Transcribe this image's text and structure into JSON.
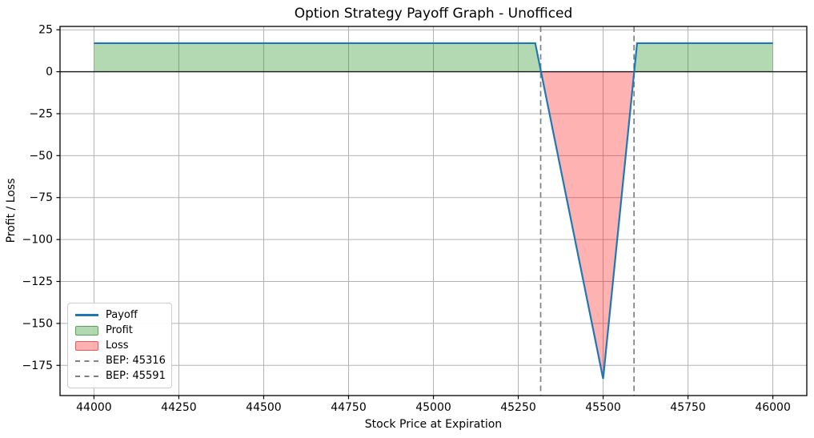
{
  "chart_data": {
    "type": "line",
    "title": "Option Strategy Payoff Graph - Unofficed",
    "xlabel": "Stock Price at Expiration",
    "ylabel": "Profit / Loss",
    "xlim": [
      43900,
      46100
    ],
    "ylim": [
      -193,
      27
    ],
    "grid": true,
    "x_ticks": [
      44000,
      44250,
      44500,
      44750,
      45000,
      45250,
      45500,
      45750,
      46000
    ],
    "x_tick_labels": [
      "44000",
      "44250",
      "44500",
      "44750",
      "45000",
      "45250",
      "45500",
      "45750",
      "46000"
    ],
    "y_ticks": [
      25,
      0,
      -25,
      -50,
      -75,
      -100,
      -125,
      -150,
      -175
    ],
    "y_tick_labels": [
      "25",
      "0",
      "−25",
      "−50",
      "−75",
      "−100",
      "−125",
      "−150",
      "−175"
    ],
    "series": [
      {
        "name": "Payoff",
        "x": [
          44000,
          45300,
          45500,
          45600,
          46000
        ],
        "y": [
          17,
          17,
          -183,
          17,
          17
        ]
      }
    ],
    "bep_lines": [
      45316,
      45591
    ],
    "zero_line": 0,
    "max_profit": 17,
    "max_loss": -183,
    "legend": [
      {
        "label": "Payoff",
        "swatch": "line",
        "color": "#1f77b4"
      },
      {
        "label": "Profit",
        "swatch": "patch",
        "color": "rgba(0,128,0,0.30)",
        "edge": "rgba(0,110,0,0.50)"
      },
      {
        "label": "Loss",
        "swatch": "patch",
        "color": "rgba(255,0,0,0.30)",
        "edge": "rgba(210,0,0,0.50)"
      },
      {
        "label": "BEP: 45316",
        "swatch": "dashed",
        "color": "#808080"
      },
      {
        "label": "BEP: 45591",
        "swatch": "dashed",
        "color": "#808080"
      }
    ],
    "legend_position": "lower-left",
    "colors": {
      "payoff_line": "#1f77b4",
      "profit_fill": "rgba(0,128,0,0.30)",
      "loss_fill": "rgba(255,0,0,0.30)",
      "bep_line": "#808080",
      "zero_line": "#1a1a1a",
      "grid": "#b2b2b2",
      "spine": "#000000",
      "tick_text": "#000000"
    }
  }
}
